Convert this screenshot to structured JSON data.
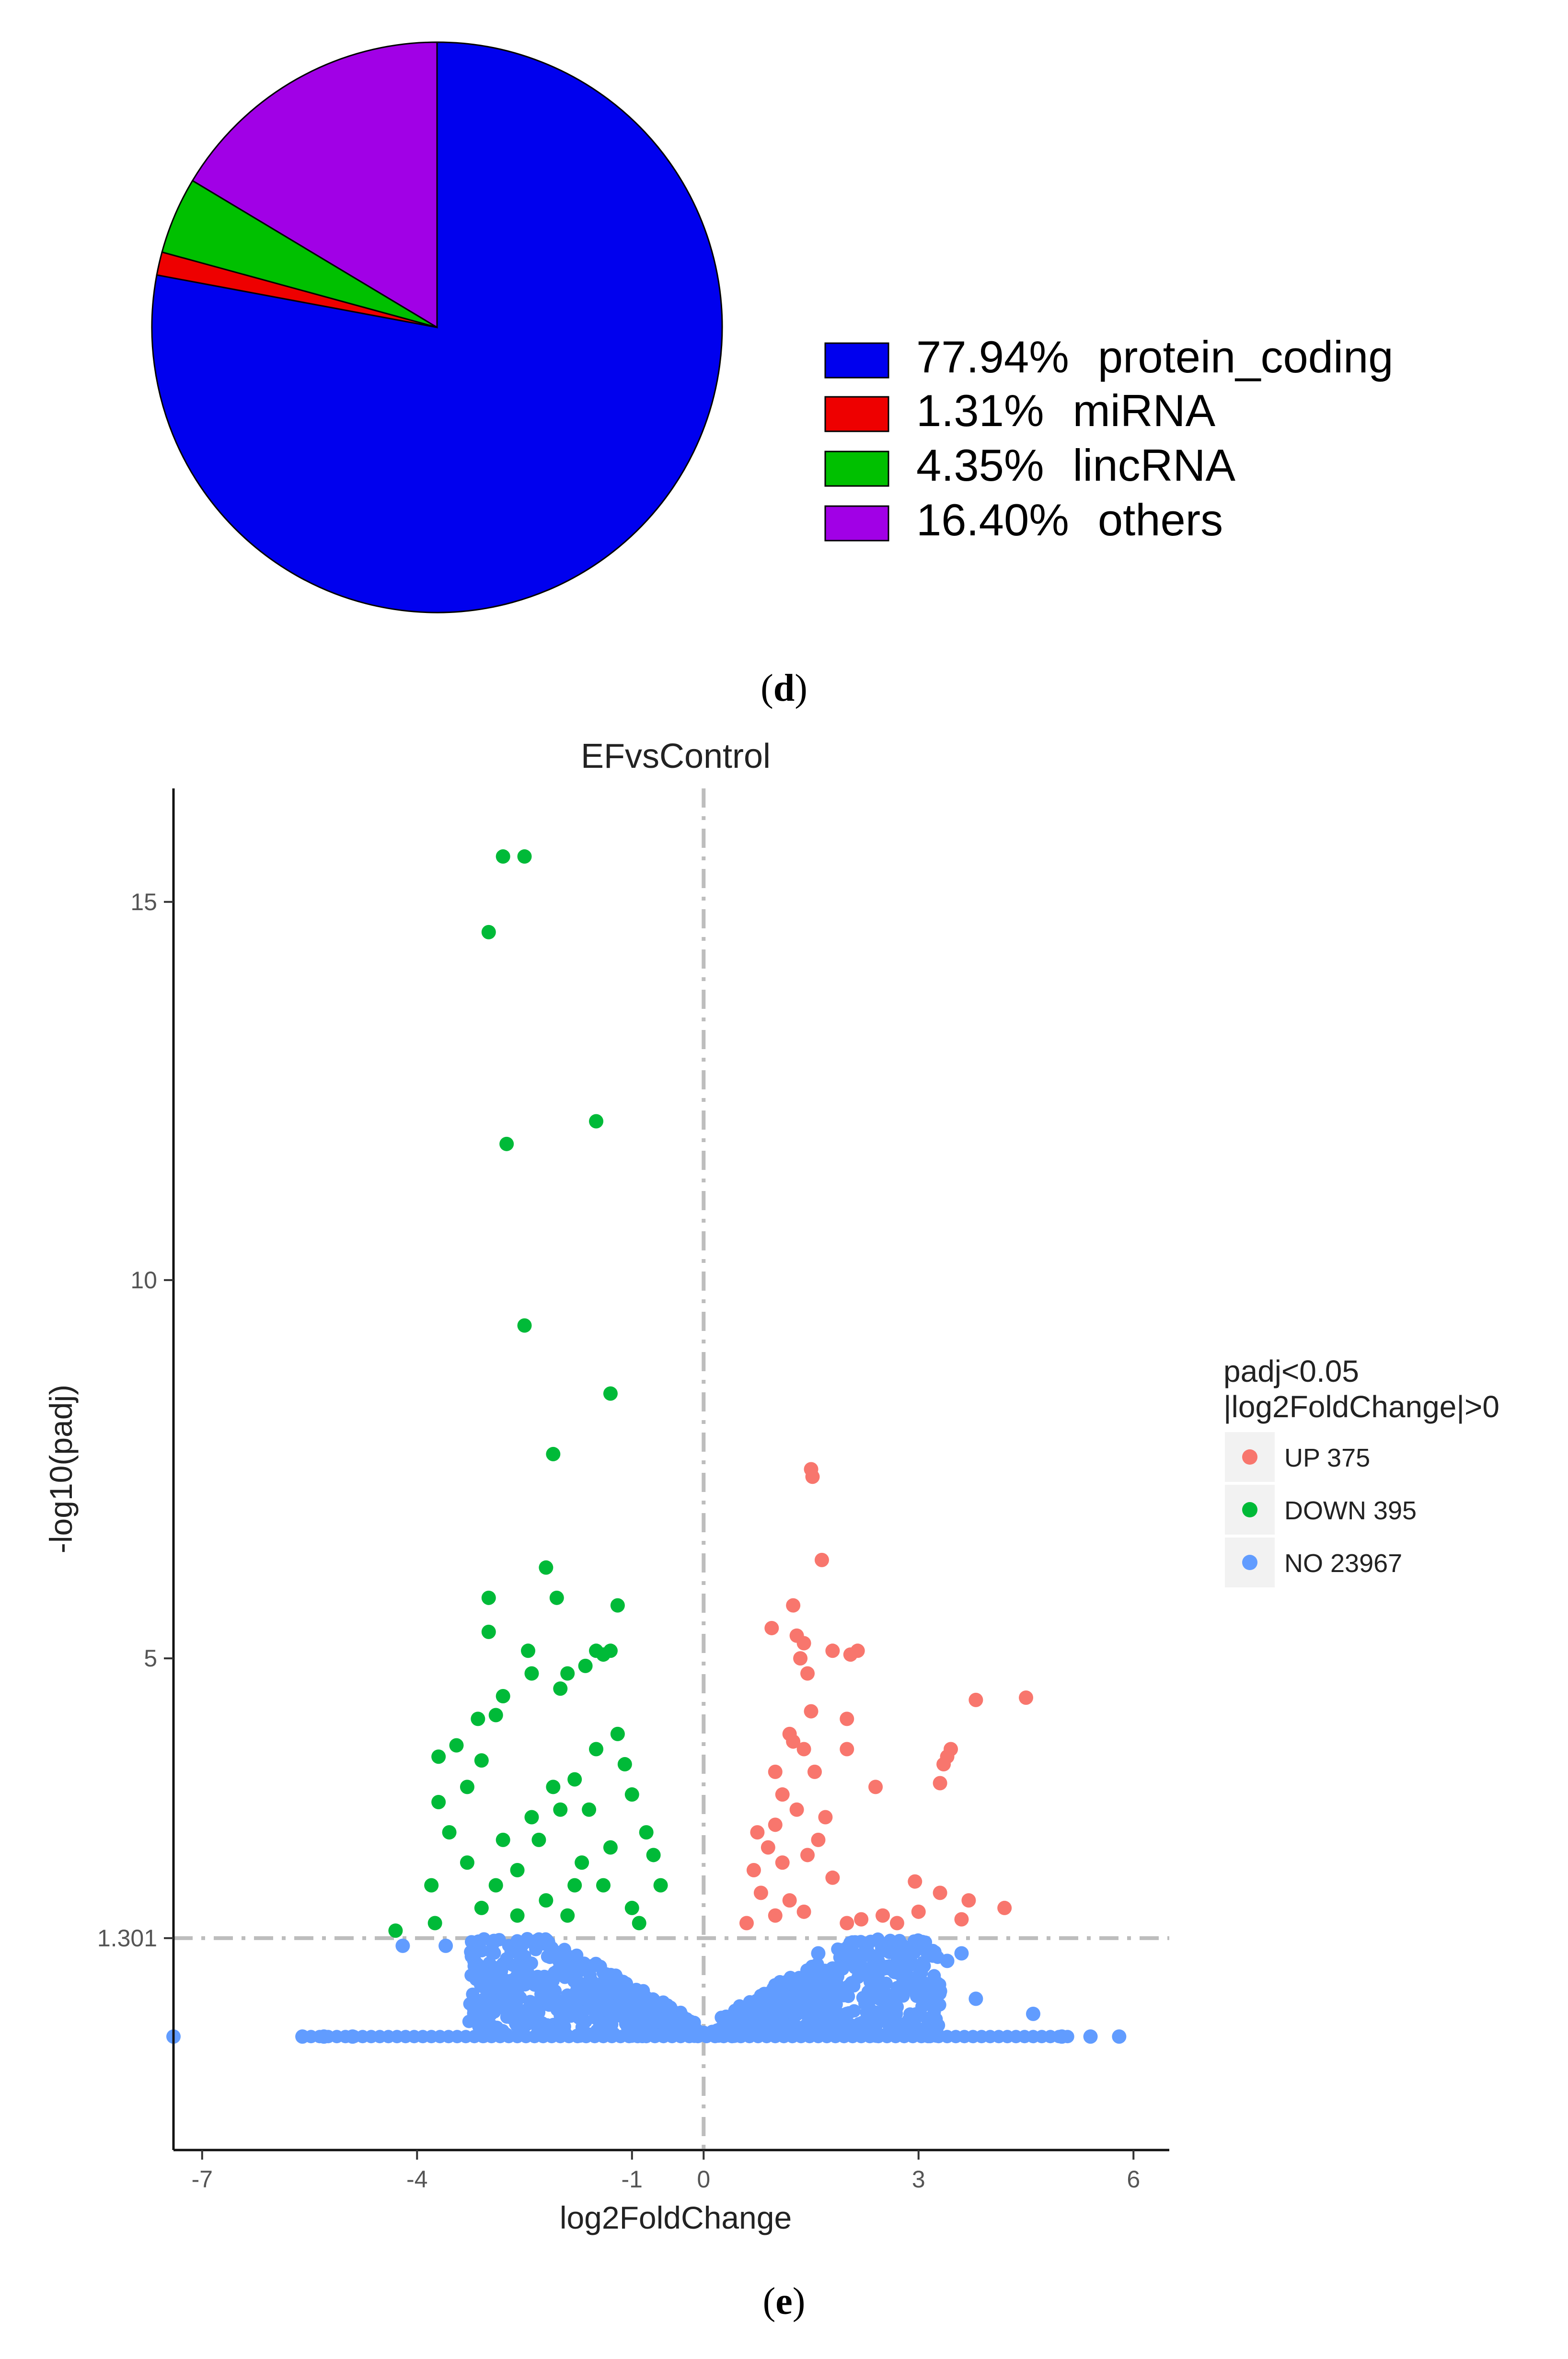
{
  "panel_labels": {
    "d": "d",
    "e": "e"
  },
  "chart_data": [
    {
      "type": "pie",
      "panel": "d",
      "slices": [
        {
          "percent_label": "77.94%",
          "label": "protein_coding",
          "value": 77.94,
          "color": "#0000ee"
        },
        {
          "percent_label": "1.31%",
          "label": "miRNA",
          "value": 1.31,
          "color": "#ee0000"
        },
        {
          "percent_label": "4.35%",
          "label": "lincRNA",
          "value": 4.35,
          "color": "#00c000"
        },
        {
          "percent_label": "16.40%",
          "label": "others",
          "value": 16.4,
          "color": "#a100e6"
        }
      ],
      "legend_position": "right"
    },
    {
      "type": "scatter",
      "panel": "e",
      "title": "EFvsControl",
      "xlabel": "log2FoldChange",
      "ylabel": "-log10(padj)",
      "xlim": [
        -7.4,
        6.5
      ],
      "ylim": [
        -1.5,
        16.5
      ],
      "x_ticks": [
        -7,
        -4,
        -1,
        0,
        3,
        6
      ],
      "x_tick_labels": [
        "-7",
        "-4",
        "-1",
        "0",
        "3",
        "6"
      ],
      "y_ticks": [
        1.301,
        5,
        10,
        15
      ],
      "y_tick_labels": [
        "1.301",
        "5",
        "10",
        "15"
      ],
      "reference_lines": {
        "vertical_x": 0,
        "horizontal_y": 1.301
      },
      "legend": {
        "title_line1": "padj<0.05",
        "title_line2": "|log2FoldChange|>0",
        "items": [
          {
            "key": "UP",
            "label": "UP 375",
            "color": "#f8766d"
          },
          {
            "key": "DOWN",
            "label": "DOWN 395",
            "color": "#00ba38"
          },
          {
            "key": "NO",
            "label": "NO 23967",
            "color": "#619cff"
          }
        ]
      },
      "series": [
        {
          "name": "UP",
          "color": "#f8766d",
          "points": [
            [
              1.5,
              7.5
            ],
            [
              1.52,
              7.4
            ],
            [
              1.65,
              6.3
            ],
            [
              1.25,
              5.7
            ],
            [
              0.95,
              5.4
            ],
            [
              1.3,
              5.3
            ],
            [
              1.4,
              5.2
            ],
            [
              1.8,
              5.1
            ],
            [
              2.05,
              5.05
            ],
            [
              2.15,
              5.1
            ],
            [
              1.35,
              5.0
            ],
            [
              1.45,
              4.8
            ],
            [
              3.8,
              4.45
            ],
            [
              4.5,
              4.48
            ],
            [
              1.5,
              4.3
            ],
            [
              2.0,
              4.2
            ],
            [
              1.2,
              4.0
            ],
            [
              1.25,
              3.9
            ],
            [
              1.4,
              3.8
            ],
            [
              2.0,
              3.8
            ],
            [
              3.45,
              3.8
            ],
            [
              3.4,
              3.7
            ],
            [
              3.35,
              3.6
            ],
            [
              1.0,
              3.5
            ],
            [
              2.4,
              3.3
            ],
            [
              1.55,
              3.5
            ],
            [
              3.3,
              3.35
            ],
            [
              1.1,
              3.2
            ],
            [
              1.3,
              3.0
            ],
            [
              1.7,
              2.9
            ],
            [
              1.0,
              2.8
            ],
            [
              0.75,
              2.7
            ],
            [
              0.9,
              2.5
            ],
            [
              1.1,
              2.3
            ],
            [
              0.7,
              2.2
            ],
            [
              1.8,
              2.1
            ],
            [
              1.6,
              2.6
            ],
            [
              1.45,
              2.4
            ],
            [
              2.95,
              2.05
            ],
            [
              3.3,
              1.9
            ],
            [
              3.7,
              1.8
            ],
            [
              4.2,
              1.7
            ],
            [
              2.5,
              1.6
            ],
            [
              3.0,
              1.65
            ],
            [
              2.7,
              1.5
            ],
            [
              3.6,
              1.55
            ],
            [
              0.8,
              1.9
            ],
            [
              1.2,
              1.8
            ],
            [
              1.0,
              1.6
            ],
            [
              0.6,
              1.5
            ],
            [
              1.4,
              1.65
            ],
            [
              2.0,
              1.5
            ],
            [
              2.2,
              1.55
            ]
          ]
        },
        {
          "name": "DOWN",
          "color": "#00ba38",
          "points": [
            [
              -2.8,
              15.6
            ],
            [
              -2.5,
              15.6
            ],
            [
              -3.0,
              14.6
            ],
            [
              -1.5,
              12.1
            ],
            [
              -2.75,
              11.8
            ],
            [
              -2.5,
              9.4
            ],
            [
              -1.3,
              8.5
            ],
            [
              -2.1,
              7.7
            ],
            [
              -2.2,
              6.2
            ],
            [
              -3.0,
              5.8
            ],
            [
              -2.05,
              5.8
            ],
            [
              -1.2,
              5.7
            ],
            [
              -3.0,
              5.35
            ],
            [
              -2.45,
              5.1
            ],
            [
              -1.5,
              5.1
            ],
            [
              -1.3,
              5.1
            ],
            [
              -1.4,
              5.05
            ],
            [
              -2.4,
              4.8
            ],
            [
              -1.9,
              4.8
            ],
            [
              -1.65,
              4.9
            ],
            [
              -2.0,
              4.6
            ],
            [
              -2.8,
              4.5
            ],
            [
              -3.15,
              4.2
            ],
            [
              -2.9,
              4.25
            ],
            [
              -3.7,
              3.7
            ],
            [
              -3.45,
              3.85
            ],
            [
              -3.1,
              3.65
            ],
            [
              -3.3,
              3.3
            ],
            [
              -3.7,
              3.1
            ],
            [
              -3.55,
              2.7
            ],
            [
              -3.3,
              2.3
            ],
            [
              -3.8,
              2.0
            ],
            [
              -4.3,
              1.4
            ],
            [
              -3.75,
              1.5
            ],
            [
              -2.9,
              2.0
            ],
            [
              -2.6,
              2.2
            ],
            [
              -2.3,
              2.6
            ],
            [
              -2.0,
              3.0
            ],
            [
              -1.8,
              3.4
            ],
            [
              -1.5,
              3.8
            ],
            [
              -1.2,
              4.0
            ],
            [
              -1.0,
              3.2
            ],
            [
              -0.8,
              2.7
            ],
            [
              -0.6,
              2.0
            ],
            [
              -1.7,
              2.3
            ],
            [
              -2.2,
              1.8
            ],
            [
              -1.0,
              1.7
            ],
            [
              -1.4,
              2.0
            ],
            [
              -2.6,
              1.6
            ],
            [
              -1.9,
              1.6
            ],
            [
              -0.9,
              1.5
            ],
            [
              -3.1,
              1.7
            ],
            [
              -1.6,
              3.0
            ],
            [
              -2.1,
              3.3
            ],
            [
              -1.1,
              3.6
            ],
            [
              -2.4,
              2.9
            ],
            [
              -1.3,
              2.5
            ],
            [
              -2.8,
              2.6
            ],
            [
              -0.7,
              2.4
            ],
            [
              -1.8,
              2.0
            ]
          ]
        },
        {
          "name": "NO",
          "color": "#619cff",
          "points": [
            [
              -7.4,
              0.0
            ],
            [
              -5.6,
              0.0
            ],
            [
              -5.3,
              0.0
            ],
            [
              -4.9,
              0.0
            ],
            [
              -4.2,
              1.2
            ],
            [
              -3.6,
              1.2
            ],
            [
              -2.9,
              0.9
            ],
            [
              -2.6,
              0.8
            ],
            [
              -2.2,
              0.5
            ],
            [
              -1.8,
              0.4
            ],
            [
              -1.4,
              0.6
            ],
            [
              -1.0,
              0.3
            ],
            [
              -0.6,
              0.2
            ],
            [
              -0.3,
              0.1
            ],
            [
              0.0,
              0.05
            ],
            [
              0.3,
              0.1
            ],
            [
              0.6,
              0.3
            ],
            [
              1.0,
              0.5
            ],
            [
              1.4,
              0.7
            ],
            [
              1.8,
              0.9
            ],
            [
              2.3,
              1.1
            ],
            [
              2.6,
              0.9
            ],
            [
              3.0,
              0.8
            ],
            [
              3.4,
              1.0
            ],
            [
              3.0,
              1.25
            ],
            [
              3.6,
              1.1
            ],
            [
              3.2,
              0.6
            ],
            [
              3.8,
              0.5
            ],
            [
              4.6,
              0.3
            ],
            [
              5.0,
              0.0
            ],
            [
              5.4,
              0.0
            ],
            [
              5.8,
              0.0
            ],
            [
              2.6,
              0.4
            ],
            [
              2.0,
              0.3
            ],
            [
              -3.2,
              1.0
            ],
            [
              -2.4,
              0.3
            ],
            [
              3.3,
              0.6
            ],
            [
              1.6,
              1.1
            ]
          ]
        }
      ]
    }
  ]
}
